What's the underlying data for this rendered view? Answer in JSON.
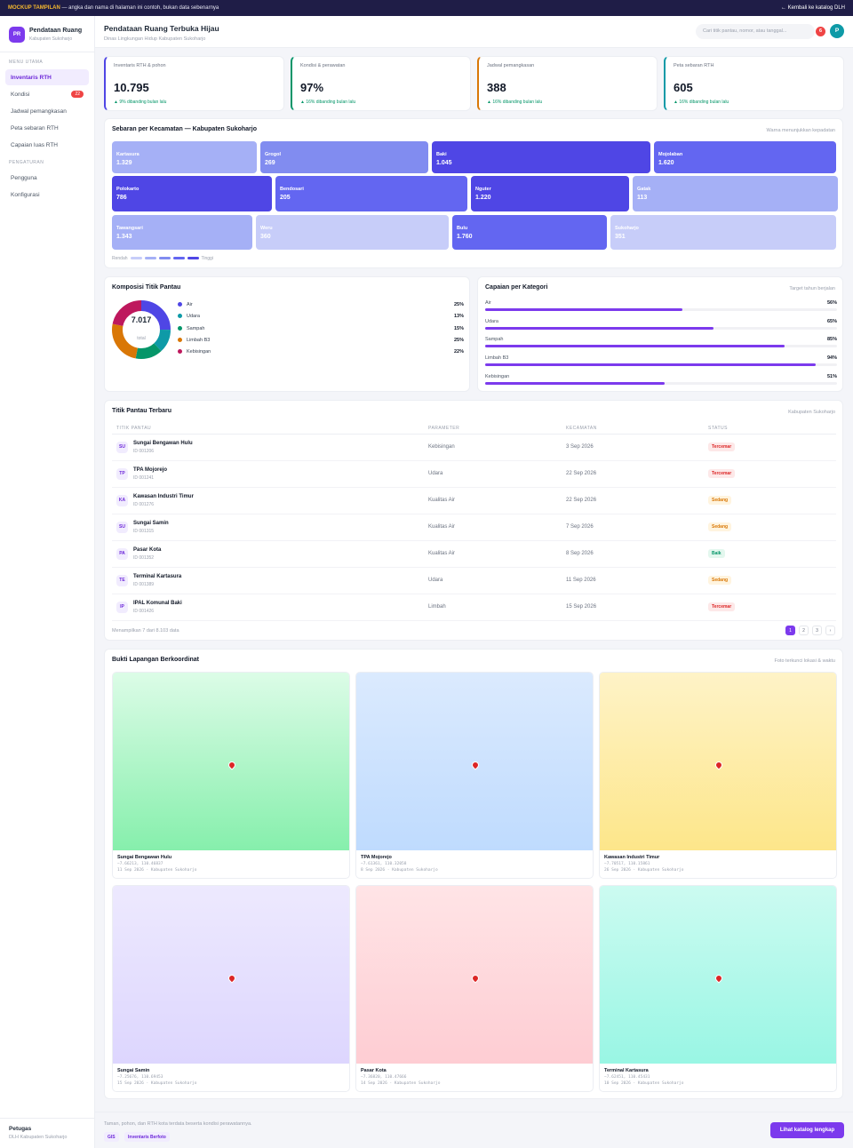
{
  "topbar": {
    "tag": "MOCKUP TAMPILAN",
    "note": "— angka dan nama di halaman ini contoh, bukan data sebenarnya",
    "back": "← Kembali ke katalog DLH"
  },
  "brand": {
    "initials": "PR",
    "title": "Pendataan Ruang",
    "subtitle": "Kabupaten Sukoharjo"
  },
  "sidebar": {
    "section1": "MENU UTAMA",
    "section2": "PENGATURAN",
    "items": [
      {
        "label": "Inventaris RTH"
      },
      {
        "label": "Kondisi",
        "badge": "22"
      },
      {
        "label": "Jadwal pemangkasan"
      },
      {
        "label": "Peta sebaran RTH"
      },
      {
        "label": "Capaian luas RTH"
      }
    ],
    "settings": [
      {
        "label": "Pengguna"
      },
      {
        "label": "Konfigurasi"
      }
    ],
    "footer": {
      "name": "Petugas",
      "org": "DLH Kabupaten Sukoharjo"
    }
  },
  "header": {
    "title": "Pendataan Ruang Terbuka Hijau",
    "subtitle": "Dinas Lingkungan Hidup Kabupaten Sukoharjo",
    "search_placeholder": "Cari titik pantau, nomor, atau tanggal...",
    "notif_count": "6",
    "avatar": "P"
  },
  "kpis": [
    {
      "label": "Inventaris RTH & pohon",
      "value": "10.795",
      "change": "▲ 9% dibanding bulan lalu",
      "color": "#4f46e5"
    },
    {
      "label": "Kondisi & perawatan",
      "value": "97%",
      "change": "▲ 16% dibanding bulan lalu",
      "color": "#059669"
    },
    {
      "label": "Jadwal pemangkasan",
      "value": "388",
      "change": "▲ 16% dibanding bulan lalu",
      "color": "#d97706"
    },
    {
      "label": "Peta sebaran RTH",
      "value": "605",
      "change": "▲ 16% dibanding bulan lalu",
      "color": "#0e9aa7"
    }
  ],
  "treemap": {
    "title": "Sebaran per Kecamatan — Kabupaten Sukoharjo",
    "hint": "Warna menunjukkan kepadatan",
    "legend_low": "Rendah",
    "legend_high": "Tinggi",
    "legend_colors": [
      "#c7cdf9",
      "#a5b0f6",
      "#818cf0",
      "#6366f1",
      "#4f46e5"
    ],
    "rows": [
      [
        {
          "name": "Kartasura",
          "value": "1.329",
          "color": "#a5b0f6"
        },
        {
          "name": "Grogol",
          "value": "269",
          "color": "#818cf0"
        },
        {
          "name": "Baki",
          "value": "1.045",
          "color": "#4f46e5"
        },
        {
          "name": "Mojolaban",
          "value": "1.620",
          "color": "#6366f1"
        }
      ],
      [
        {
          "name": "Polokarto",
          "value": "786",
          "color": "#4f46e5"
        },
        {
          "name": "Bendosari",
          "value": "205",
          "color": "#6366f1"
        },
        {
          "name": "Nguter",
          "value": "1.220",
          "color": "#4f46e5"
        },
        {
          "name": "Gatak",
          "value": "113",
          "color": "#a5b0f6"
        }
      ],
      [
        {
          "name": "Tawangsari",
          "value": "1.343",
          "color": "#a5b0f6"
        },
        {
          "name": "Weru",
          "value": "360",
          "color": "#c7cdf9"
        },
        {
          "name": "Bulu",
          "value": "1.760",
          "color": "#6366f1"
        },
        {
          "name": "Sukoharjo",
          "value": "351",
          "color": "#c7cdf9"
        }
      ]
    ]
  },
  "composition": {
    "title": "Komposisi Titik Pantau",
    "total": "7.017",
    "total_label": "total",
    "items": [
      {
        "label": "Air",
        "pct": "25%",
        "value": 25,
        "color": "#4f46e5"
      },
      {
        "label": "Udara",
        "pct": "13%",
        "value": 13,
        "color": "#0e9aa7"
      },
      {
        "label": "Sampah",
        "pct": "15%",
        "value": 15,
        "color": "#059669"
      },
      {
        "label": "Limbah B3",
        "pct": "25%",
        "value": 25,
        "color": "#d97706"
      },
      {
        "label": "Kebisingan",
        "pct": "22%",
        "value": 22,
        "color": "#be185d"
      }
    ]
  },
  "achievement": {
    "title": "Capaian per Kategori",
    "hint": "Target tahun berjalan",
    "items": [
      {
        "label": "Air",
        "pct": "56%",
        "value": 56
      },
      {
        "label": "Udara",
        "pct": "65%",
        "value": 65
      },
      {
        "label": "Sampah",
        "pct": "85%",
        "value": 85
      },
      {
        "label": "Limbah B3",
        "pct": "94%",
        "value": 94
      },
      {
        "label": "Kebisingan",
        "pct": "51%",
        "value": 51
      }
    ]
  },
  "table": {
    "title": "Titik Pantau Terbaru",
    "hint": "Kabupaten Sukoharjo",
    "headers": [
      "TITIK PANTAU",
      "PARAMETER",
      "KECAMATAN",
      "STATUS"
    ],
    "rows": [
      {
        "ini": "SU",
        "name": "Sungai Bengawan Hulu",
        "id": "ID 001206",
        "param": "Kebisingan",
        "date": "3 Sep 2026",
        "status": "Tercemar",
        "cls": "bad"
      },
      {
        "ini": "TP",
        "name": "TPA Mojorejo",
        "id": "ID 001241",
        "param": "Udara",
        "date": "22 Sep 2026",
        "status": "Tercemar",
        "cls": "bad"
      },
      {
        "ini": "KA",
        "name": "Kawasan Industri Timur",
        "id": "ID 001276",
        "param": "Kualitas Air",
        "date": "22 Sep 2026",
        "status": "Sedang",
        "cls": "mid"
      },
      {
        "ini": "SU",
        "name": "Sungai Samin",
        "id": "ID 001315",
        "param": "Kualitas Air",
        "date": "7 Sep 2026",
        "status": "Sedang",
        "cls": "mid"
      },
      {
        "ini": "PA",
        "name": "Pasar Kota",
        "id": "ID 001352",
        "param": "Kualitas Air",
        "date": "8 Sep 2026",
        "status": "Baik",
        "cls": "ok"
      },
      {
        "ini": "TE",
        "name": "Terminal Kartasura",
        "id": "ID 001389",
        "param": "Udara",
        "date": "11 Sep 2026",
        "status": "Sedang",
        "cls": "mid"
      },
      {
        "ini": "IP",
        "name": "IPAL Komunal Baki",
        "id": "ID 001426",
        "param": "Limbah",
        "date": "15 Sep 2026",
        "status": "Tercemar",
        "cls": "bad"
      }
    ],
    "footer": "Menampilkan 7 dari 8.103 data",
    "pages": [
      "1",
      "2",
      "3",
      "›"
    ]
  },
  "photos": {
    "title": "Bukti Lapangan Berkoordinat",
    "hint": "Foto terkunci lokasi & waktu",
    "items": [
      {
        "name": "Sungai Bengawan Hulu",
        "coord": "−7.66213, 110.46837",
        "meta": "11 Sep 2026 · Kabupaten Sukoharjo",
        "c1": "#dcfce7",
        "c2": "#86efac"
      },
      {
        "name": "TPA Mojorejo",
        "coord": "−7.61361, 110.32058",
        "meta": "8 Sep 2026 · Kabupaten Sukoharjo",
        "c1": "#dbeafe",
        "c2": "#bfdbfe"
      },
      {
        "name": "Kawasan Industri Timur",
        "coord": "−7.70517, 110.15861",
        "meta": "26 Sep 2026 · Kabupaten Sukoharjo",
        "c1": "#fef3c7",
        "c2": "#fde68a"
      },
      {
        "name": "Sungai Samin",
        "coord": "−7.25676, 110.69453",
        "meta": "15 Sep 2026 · Kabupaten Sukoharjo",
        "c1": "#ede9fe",
        "c2": "#ddd6fe"
      },
      {
        "name": "Pasar Kota",
        "coord": "−7.36820, 110.47666",
        "meta": "14 Sep 2026 · Kabupaten Sukoharjo",
        "c1": "#ffe4e6",
        "c2": "#fecdd3"
      },
      {
        "name": "Terminal Kartasura",
        "coord": "−7.62451, 110.45431",
        "meta": "10 Sep 2026 · Kabupaten Sukoharjo",
        "c1": "#ccfbf1",
        "c2": "#99f6e4"
      }
    ]
  },
  "footer": {
    "desc": "Taman, pohon, dan RTH kota terdata beserta kondisi perawatannya.",
    "chips": [
      "GIS",
      "Inventaris Berfoto"
    ],
    "cta": "Lihat katalog lengkap"
  }
}
